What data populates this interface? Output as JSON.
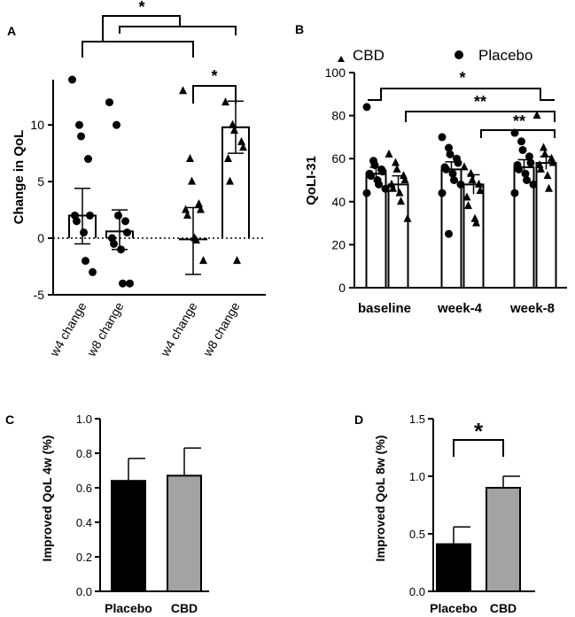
{
  "panels": {
    "A": {
      "letter": "A",
      "chart_type": "scatter-bar",
      "ylabel": "Change in QoL",
      "ylim": [
        -5,
        14
      ],
      "yticks": [
        -5,
        0,
        5,
        10
      ],
      "reference_line": 0,
      "groups": [
        {
          "label": "w4 change",
          "marker": "circle",
          "mean": 2.0,
          "err_low": -0.5,
          "err_high": 4.4,
          "points": [
            14,
            10,
            9,
            7,
            2,
            2,
            1.5,
            0.5,
            -2,
            -3
          ]
        },
        {
          "label": "w8 change",
          "marker": "circle",
          "mean": 0.6,
          "err_low": -1.0,
          "err_high": 2.5,
          "points": [
            12,
            10,
            2,
            1.5,
            0.5,
            0,
            -0.5,
            -1,
            -4,
            -4
          ]
        },
        {
          "label": "w4 change",
          "marker": "triangle",
          "mean": -0.1,
          "err_low": -3.2,
          "err_high": 2.7,
          "points": [
            13,
            7,
            5,
            3,
            2.5,
            2.5,
            2,
            0,
            -0.2,
            -2
          ]
        },
        {
          "label": "w8 change",
          "marker": "triangle",
          "mean": 9.8,
          "err_low": 7.5,
          "err_high": 12.1,
          "points": [
            12,
            10,
            9.5,
            8.5,
            8,
            7,
            5,
            -2
          ]
        }
      ],
      "significance": [
        {
          "label": "*",
          "from_group": 2,
          "to_group": 3
        },
        {
          "label": "*",
          "from_bracket": "left",
          "to_bracket": "right"
        }
      ]
    },
    "B": {
      "letter": "B",
      "chart_type": "scatter-bar",
      "ylabel": "QoLI-31",
      "ylim": [
        0,
        100
      ],
      "yticks": [
        0,
        20,
        40,
        60,
        80,
        100
      ],
      "legend": [
        {
          "label": "CBD",
          "marker": "triangle"
        },
        {
          "label": "Placebo",
          "marker": "circle"
        }
      ],
      "categories": [
        "baseline",
        "week-4",
        "week-8"
      ],
      "series": [
        {
          "name": "Placebo",
          "marker": "circle",
          "means": [
            53,
            55,
            56
          ],
          "errs": [
            3,
            3.5,
            3.5
          ],
          "points": [
            [
              84,
              59,
              57,
              55,
              54,
              53,
              52,
              50,
              48,
              46,
              44
            ],
            [
              70,
              65,
              62,
              60,
              58,
              56,
              55,
              53,
              50,
              48,
              44,
              25
            ],
            [
              72,
              68,
              64,
              61,
              58,
              57,
              55,
              53,
              50,
              48,
              44
            ]
          ]
        },
        {
          "name": "CBD",
          "marker": "triangle",
          "means": [
            48,
            48,
            58
          ],
          "errs": [
            4,
            4.5,
            3
          ],
          "points": [
            [
              62,
              58,
              55,
              52,
              50,
              48,
              46,
              44,
              40,
              32
            ],
            [
              56,
              53,
              50,
              48,
              45,
              42,
              38,
              32,
              30
            ],
            [
              80,
              65,
              62,
              60,
              58,
              57,
              55,
              52,
              46
            ]
          ]
        }
      ],
      "significance": [
        {
          "label": "*",
          "between": [
            "baseline",
            "week-8"
          ]
        },
        {
          "label": "**",
          "between": [
            "baseline",
            "week-8"
          ]
        },
        {
          "label": "**",
          "between": [
            "week-4",
            "week-8"
          ]
        }
      ]
    },
    "C": {
      "letter": "C",
      "chart_type": "bar",
      "ylabel": "Improved QoL 4w (%)",
      "ylim": [
        0,
        1.0
      ],
      "yticks": [
        "0.0",
        "0.2",
        "0.4",
        "0.6",
        "0.8",
        "1.0"
      ],
      "categories": [
        "Placebo",
        "CBD"
      ],
      "values": [
        0.64,
        0.67
      ],
      "errors": [
        0.13,
        0.16
      ],
      "colors": [
        "#000000",
        "#a3a3a3"
      ]
    },
    "D": {
      "letter": "D",
      "chart_type": "bar",
      "ylabel": "Improved QoL 8w (%)",
      "ylim": [
        0,
        1.5
      ],
      "yticks": [
        "0.0",
        "0.5",
        "1.0",
        "1.5"
      ],
      "categories": [
        "Placebo",
        "CBD"
      ],
      "values": [
        0.41,
        0.9
      ],
      "errors": [
        0.15,
        0.1
      ],
      "colors": [
        "#000000",
        "#a3a3a3"
      ],
      "significance": [
        {
          "label": "*",
          "between": [
            "Placebo",
            "CBD"
          ]
        }
      ]
    }
  }
}
